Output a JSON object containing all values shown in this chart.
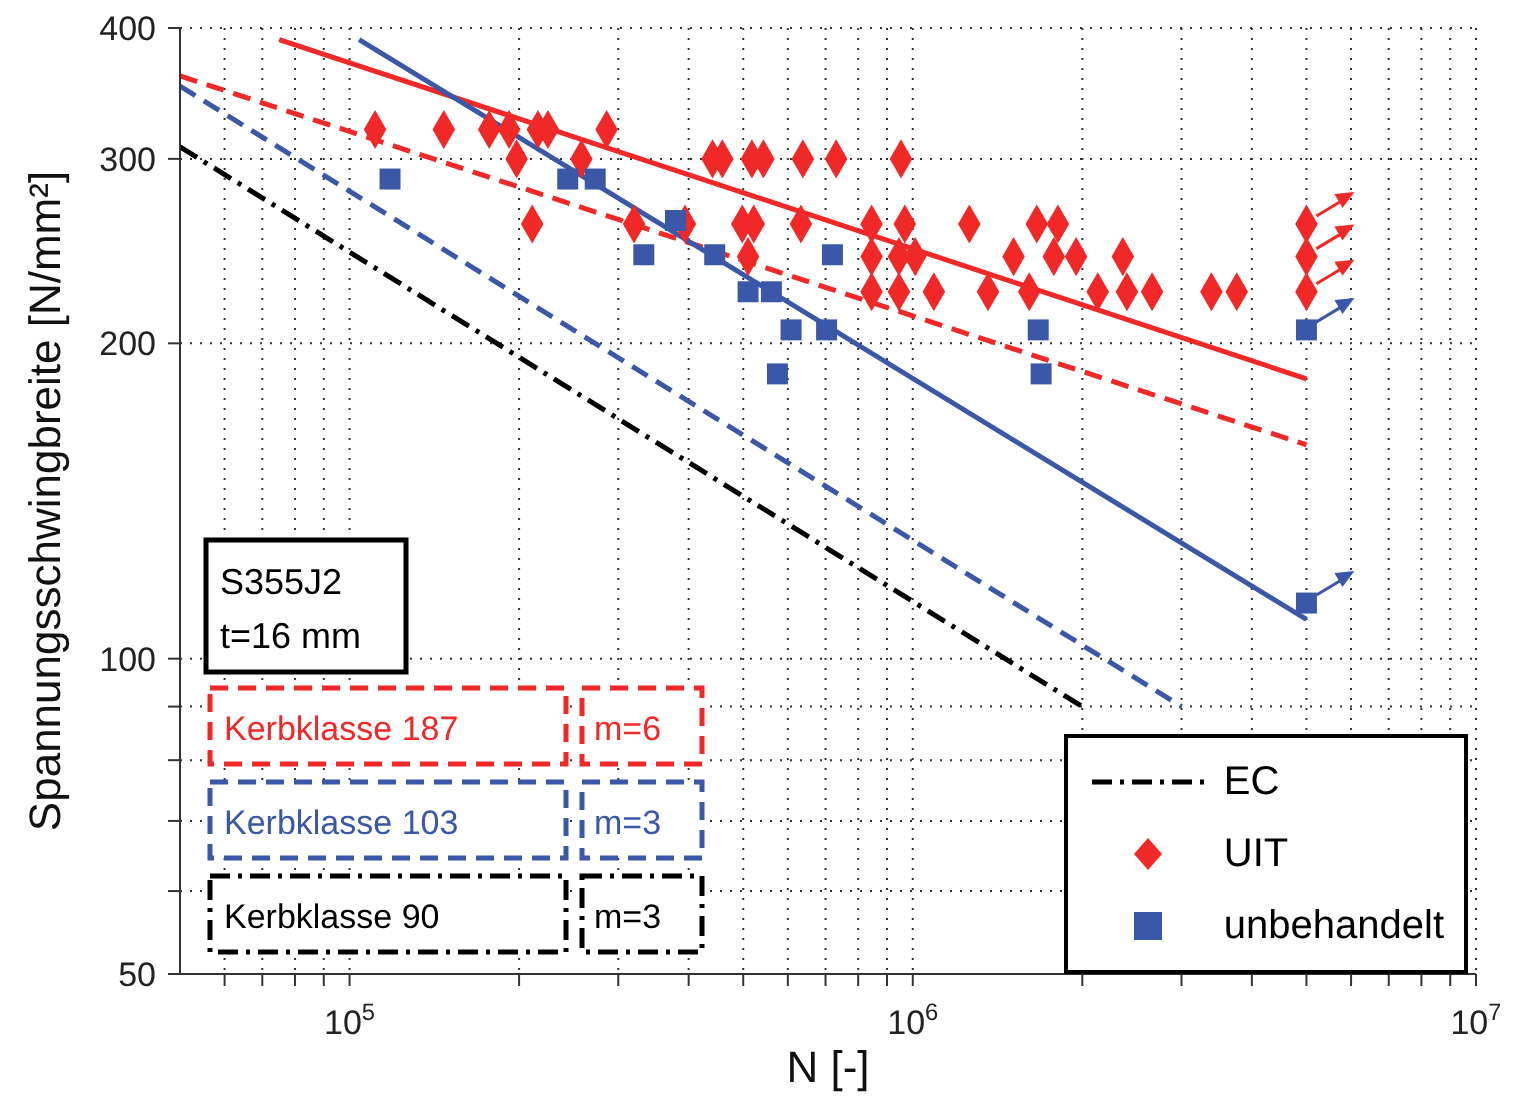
{
  "chart_data": {
    "type": "scatter",
    "xlabel": "N [-]",
    "ylabel": "Spannungsschwingbreite [N/mm²]",
    "log": "xy",
    "grid": true,
    "legend": "bottom right",
    "xlim": [
      50000,
      10000000
    ],
    "xticks": [
      {
        "value": 60000,
        "label": null
      },
      {
        "value": 70000,
        "label": null
      },
      {
        "value": 80000,
        "label": null
      },
      {
        "value": 90000,
        "label": null
      },
      {
        "value": 100000,
        "label": "10$^{5}$"
      },
      {
        "value": 200000,
        "label": null
      },
      {
        "value": 300000,
        "label": null
      },
      {
        "value": 400000,
        "label": null
      },
      {
        "value": 500000,
        "label": null
      },
      {
        "value": 600000,
        "label": null
      },
      {
        "value": 700000,
        "label": null
      },
      {
        "value": 800000,
        "label": null
      },
      {
        "value": 900000,
        "label": null
      },
      {
        "value": 1000000,
        "label": "10$^{6}$"
      },
      {
        "value": 2000000,
        "label": null
      },
      {
        "value": 3000000,
        "label": null
      },
      {
        "value": 4000000,
        "label": null
      },
      {
        "value": 5000000,
        "label": null
      },
      {
        "value": 6000000,
        "label": null
      },
      {
        "value": 7000000,
        "label": null
      },
      {
        "value": 8000000,
        "label": null
      },
      {
        "value": 9000000,
        "label": null
      },
      {
        "value": 10000000,
        "label": "10$^{7}$"
      }
    ],
    "ylim": [
      50,
      400
    ],
    "yticks": [
      50,
      {
        "value": 60,
        "label": null
      },
      {
        "value": 70,
        "label": null
      },
      {
        "value": 80,
        "label": null
      },
      {
        "value": 90,
        "label": null
      },
      100,
      200,
      300,
      400
    ],
    "annotations": [
      "S355J2",
      "t=16 mm",
      "Kerbklasse 187",
      "m=6",
      "Kerbklasse 103",
      "m=3",
      "Kerbklasse 90",
      "m=3"
    ],
    "series": [
      {
        "type": "line",
        "color": "#f02828",
        "line_style": "dashed",
        "marker": "none",
        "x": [
          50000,
          5000000
        ],
        "values": [
          360,
          160
        ]
      },
      {
        "type": "line",
        "color": "#3a57a8",
        "line_style": "dashed",
        "marker": "none",
        "x": [
          50000,
          3000000
        ],
        "values": [
          352,
          90
        ]
      },
      {
        "type": "line",
        "name": "EC",
        "color": "#000000",
        "line_style": "dashdot",
        "marker": "none",
        "x": [
          50000,
          2000000
        ],
        "values": [
          308,
          90
        ]
      },
      {
        "type": "line",
        "color": "#f02828",
        "line_style": "solid",
        "marker": "none",
        "x": [
          75000,
          5000000
        ],
        "values": [
          390,
          185
        ]
      },
      {
        "type": "line",
        "color": "#3a57a8",
        "line_style": "solid",
        "marker": "none",
        "x": [
          104000,
          5000000
        ],
        "values": [
          390,
          109
        ]
      },
      {
        "name": "UIT",
        "color": "#f02828",
        "marker": "diamond",
        "x": [
          111000,
          147000,
          177000,
          192000,
          216000,
          225000,
          286000,
          198000,
          258000,
          441000,
          459000,
          518000,
          543000,
          638000,
          731000,
          953000,
          211000,
          320000,
          394000,
          498000,
          522000,
          633000,
          845000,
          968000,
          1260000,
          1660000,
          1810000,
          5000000,
          510000,
          845000,
          945000,
          1010000,
          1510000,
          1780000,
          1950000,
          2360000,
          5000000,
          845000,
          945000,
          1090000,
          1360000,
          1610000,
          2130000,
          2400000,
          2660000,
          3390000,
          3760000,
          5000000
        ],
        "values": [
          320,
          320,
          320,
          320,
          320,
          320,
          320,
          300,
          300,
          300,
          300,
          300,
          300,
          300,
          300,
          300,
          260,
          260,
          260,
          260,
          260,
          260,
          260,
          260,
          260,
          260,
          260,
          260,
          242,
          242,
          242,
          242,
          242,
          242,
          242,
          242,
          242,
          224,
          224,
          224,
          224,
          224,
          224,
          224,
          224,
          224,
          224,
          224
        ]
      },
      {
        "name": "unbehandelt",
        "color": "#3a57a8",
        "marker": "square",
        "x": [
          118000,
          244000,
          273000,
          333000,
          379000,
          445000,
          510000,
          561000,
          608000,
          703000,
          575000,
          720000,
          1670000,
          1690000,
          5000000,
          5000000
        ],
        "values": [
          287,
          287,
          287,
          243,
          262,
          243,
          224,
          224,
          206,
          206,
          187,
          243,
          206,
          187,
          206,
          113
        ]
      }
    ]
  }
}
